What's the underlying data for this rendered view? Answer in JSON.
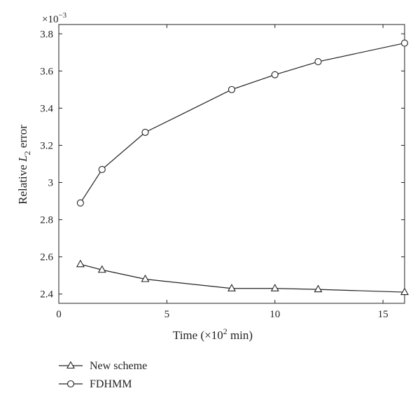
{
  "chart_data": {
    "type": "line",
    "xlabel_prefix": "Time (×10",
    "xlabel_exp": "2",
    "xlabel_suffix": " min)",
    "ylabel_prefix": "Relative ",
    "ylabel_var": "L",
    "ylabel_sub": "2",
    "ylabel_suffix": " error",
    "y_multiplier_base": "×10",
    "y_multiplier_exp": "−3",
    "xlim": [
      0,
      16
    ],
    "ylim": [
      2.35,
      3.85
    ],
    "xticks": [
      0,
      5,
      10,
      15
    ],
    "yticks": [
      2.4,
      2.6,
      2.8,
      3,
      3.2,
      3.4,
      3.6,
      3.8
    ],
    "ytick_labels": [
      "2.4",
      "2.6",
      "2.8",
      "3",
      "3.2",
      "3.4",
      "3.6",
      "3.8"
    ],
    "grid": false,
    "legend_position": "below",
    "x": [
      1,
      2,
      4,
      8,
      10,
      12,
      16
    ],
    "series": [
      {
        "name": "New scheme",
        "marker": "triangle",
        "values": [
          2.56,
          2.53,
          2.48,
          2.43,
          2.43,
          2.425,
          2.41
        ]
      },
      {
        "name": "FDHMM",
        "marker": "circle",
        "values": [
          2.89,
          3.07,
          3.27,
          3.5,
          3.58,
          3.65,
          3.75
        ]
      }
    ]
  }
}
